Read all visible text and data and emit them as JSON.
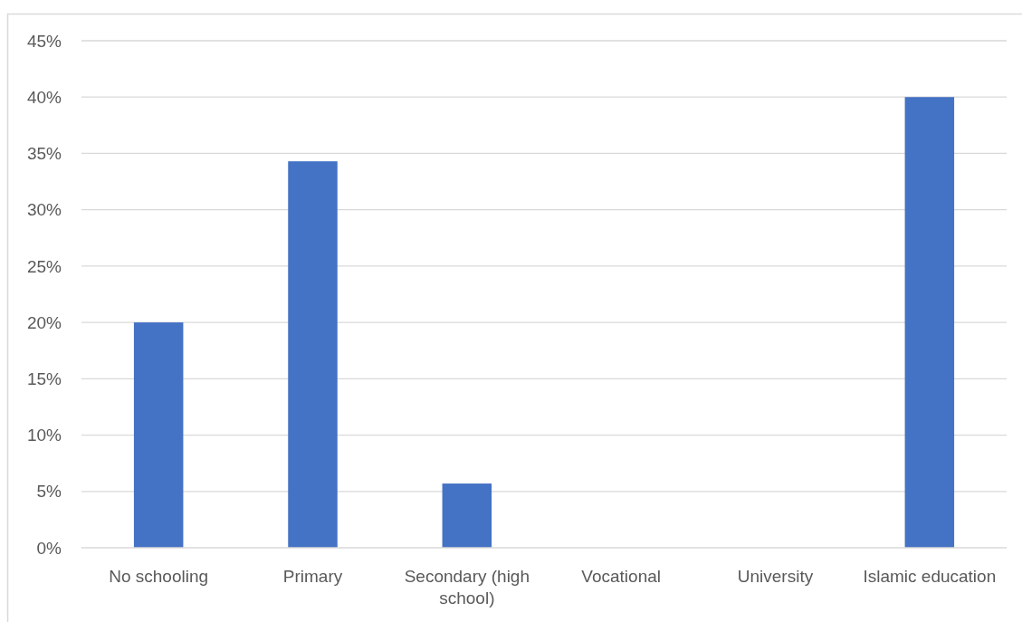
{
  "chart_data": {
    "type": "bar",
    "categories": [
      "No schooling",
      "Primary",
      "Secondary (high school)",
      "Vocational",
      "University",
      "Islamic education"
    ],
    "values": [
      20,
      34.3,
      5.7,
      0,
      0,
      40
    ],
    "color": "#4472c4",
    "ylim": [
      0,
      45
    ],
    "yticks": [
      {
        "value": 0,
        "label": "0%"
      },
      {
        "value": 5,
        "label": "5%"
      },
      {
        "value": 10,
        "label": "10%"
      },
      {
        "value": 15,
        "label": "15%"
      },
      {
        "value": 20,
        "label": "20%"
      },
      {
        "value": 25,
        "label": "25%"
      },
      {
        "value": 30,
        "label": "30%"
      },
      {
        "value": 35,
        "label": "35%"
      },
      {
        "value": 40,
        "label": "40%"
      },
      {
        "value": 45,
        "label": "45%"
      }
    ],
    "grid": "y"
  }
}
